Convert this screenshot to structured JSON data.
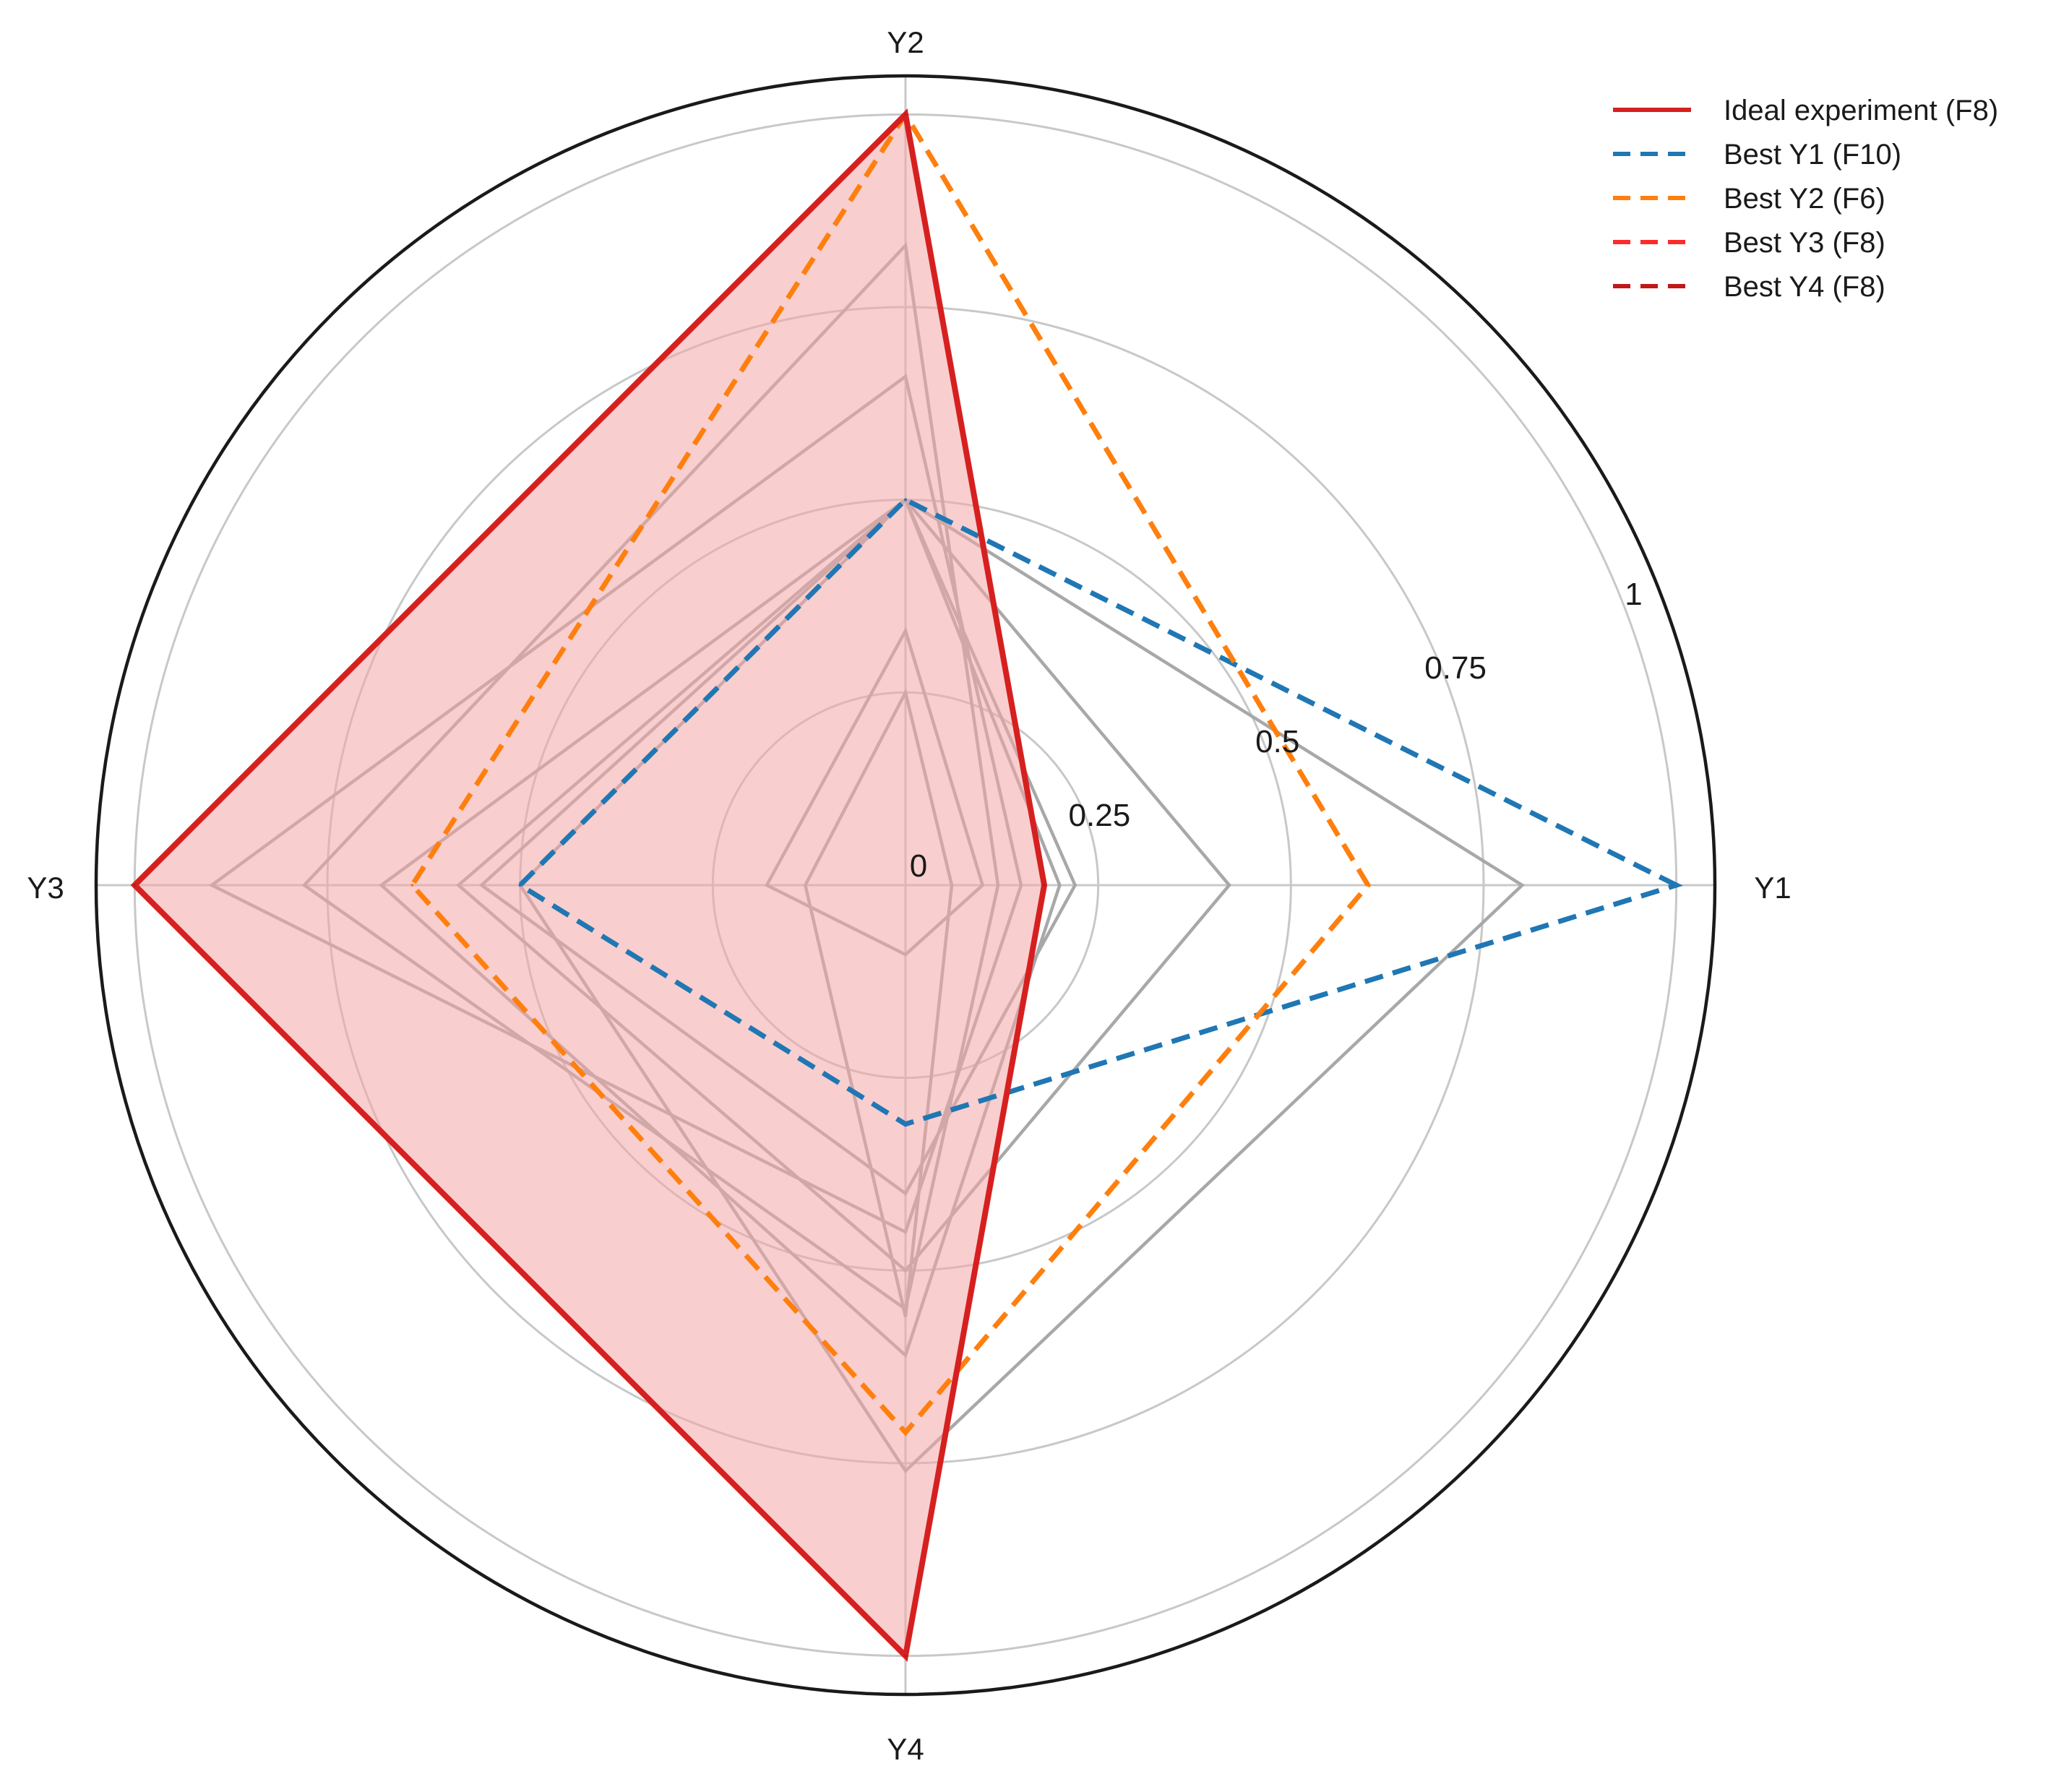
{
  "chart_data": {
    "type": "radar",
    "axes": [
      "Y1",
      "Y2",
      "Y3",
      "Y4"
    ],
    "radial_ticks": [
      {
        "value": 0,
        "label": "0"
      },
      {
        "value": 0.25,
        "label": "0.25"
      },
      {
        "value": 0.5,
        "label": "0.5"
      },
      {
        "value": 0.75,
        "label": "0.75"
      },
      {
        "value": 1,
        "label": "1"
      }
    ],
    "rmax": 1.05,
    "grid_rings": [
      0.25,
      0.5,
      0.75,
      1.0
    ],
    "legend_position": "top-right",
    "series": [
      {
        "name": "Ideal experiment (F8)",
        "values": [
          0.18,
          1.0,
          1.0,
          1.0
        ],
        "color": "#d62020",
        "style": "solid",
        "filled": true,
        "fill_color": "#f4a6a6",
        "fill_opacity": 0.55
      },
      {
        "name": "Best Y1 (F10)",
        "values": [
          1.0,
          0.5,
          0.5,
          0.31
        ],
        "color": "#1f77b4",
        "style": "dashed"
      },
      {
        "name": "Best Y2 (F6)",
        "values": [
          0.6,
          1.0,
          0.64,
          0.71
        ],
        "color": "#ff7f0e",
        "style": "dashed"
      },
      {
        "name": "Best Y3 (F8)",
        "values": [
          0.18,
          1.0,
          1.0,
          1.0
        ],
        "color": "#ff2a2a",
        "style": "dashed"
      },
      {
        "name": "Best Y4  (F8)",
        "values": [
          0.18,
          1.0,
          1.0,
          1.0
        ],
        "color": "#c01818",
        "style": "dashed"
      }
    ],
    "other_experiments": [
      {
        "values": [
          0.8,
          0.5,
          0.5,
          0.76
        ]
      },
      {
        "values": [
          0.42,
          0.5,
          0.58,
          0.5
        ]
      },
      {
        "values": [
          0.22,
          0.5,
          0.55,
          0.4
        ]
      },
      {
        "values": [
          0.15,
          0.66,
          0.9,
          0.45
        ]
      },
      {
        "values": [
          0.12,
          0.83,
          0.78,
          0.55
        ]
      },
      {
        "values": [
          0.1,
          0.33,
          0.18,
          0.09
        ]
      },
      {
        "values": [
          0.06,
          0.25,
          0.13,
          0.56
        ]
      },
      {
        "values": [
          0.2,
          0.5,
          0.68,
          0.61
        ]
      }
    ],
    "other_color": "#a8a8a8"
  }
}
